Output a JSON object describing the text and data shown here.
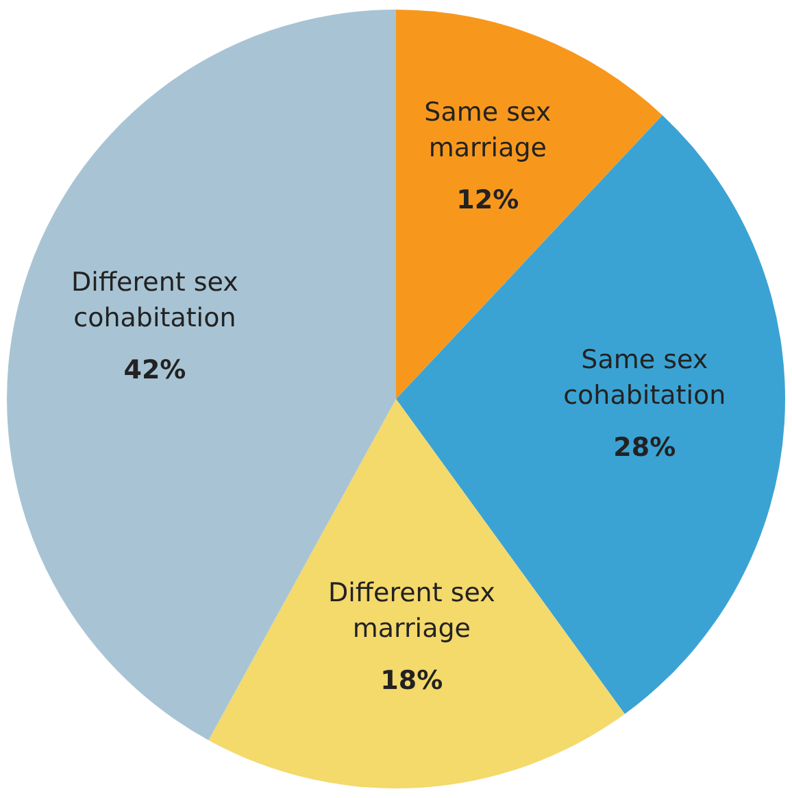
{
  "chart_data": {
    "type": "pie",
    "categories": [
      "Same sex marriage",
      "Same sex cohabitation",
      "Different sex marriage",
      "Different sex cohabitation"
    ],
    "values": [
      12,
      28,
      18,
      42
    ],
    "colors": [
      "#f7981d",
      "#3ba3d3",
      "#f4d96b",
      "#a8c4d4"
    ],
    "value_labels": [
      "12%",
      "28%",
      "18%",
      "42%"
    ]
  }
}
